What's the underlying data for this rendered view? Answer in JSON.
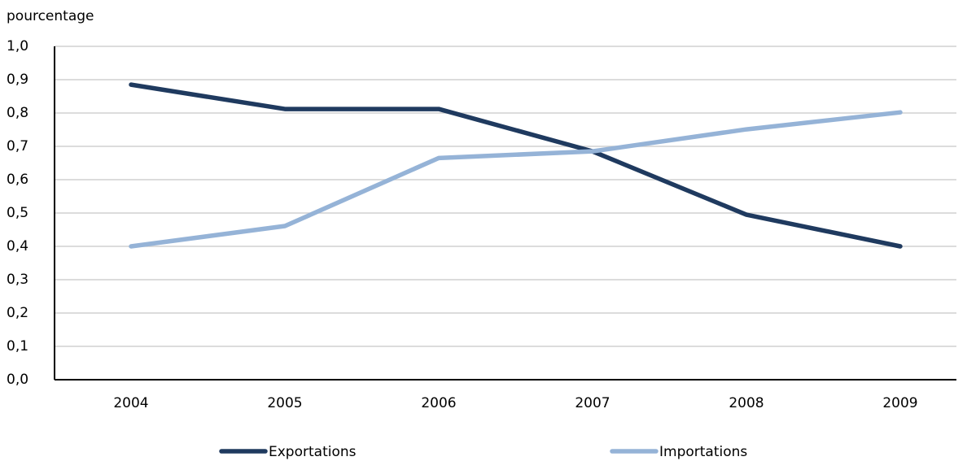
{
  "chart_data": {
    "type": "line",
    "y_label": "pourcentage",
    "categories": [
      "2004",
      "2005",
      "2006",
      "2007",
      "2008",
      "2009"
    ],
    "series": [
      {
        "name": "Exportations",
        "color": "#1f3a5f",
        "values": [
          0.885,
          0.812,
          0.812,
          0.685,
          0.495,
          0.4
        ]
      },
      {
        "name": "Importations",
        "color": "#95b3d7",
        "values": [
          0.4,
          0.461,
          0.665,
          0.685,
          0.751,
          0.802
        ]
      }
    ],
    "ylim": [
      0,
      1
    ],
    "yticks": [
      {
        "value": 0,
        "label": "0,0"
      },
      {
        "value": 0.1,
        "label": "0,1"
      },
      {
        "value": 0.2,
        "label": "0,2"
      },
      {
        "value": 0.3,
        "label": "0,3"
      },
      {
        "value": 0.4,
        "label": "0,4"
      },
      {
        "value": 0.5,
        "label": "0,5"
      },
      {
        "value": 0.6,
        "label": "0,6"
      },
      {
        "value": 0.7,
        "label": "0,7"
      },
      {
        "value": 0.8,
        "label": "0,8"
      },
      {
        "value": 0.9,
        "label": "0,9"
      },
      {
        "value": 1,
        "label": "1,0"
      }
    ],
    "grid": true,
    "legend": "bottom"
  }
}
